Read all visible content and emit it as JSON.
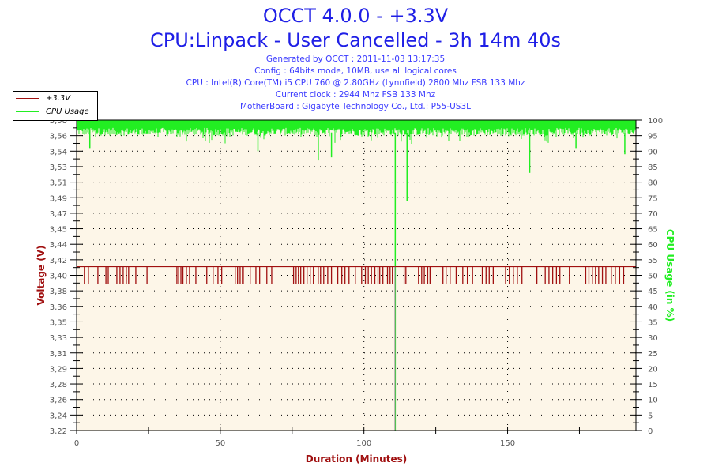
{
  "header": {
    "title": "OCCT 4.0.0 - +3.3V",
    "subtitle": "CPU:Linpack - User Cancelled - 3h 14m 40s",
    "info": [
      "Generated by OCCT : 2011-11-03 13:17:35",
      "Config : 64bits mode, 10MB, use all logical cores",
      "CPU : Intel(R) Core(TM) i5 CPU 760 @ 2.80GHz (Lynnfield) 2800 Mhz FSB 133 Mhz",
      "Current clock : 2944 Mhz FSB 133 Mhz",
      "MotherBoard : Gigabyte Technology Co., Ltd.: P55-US3L"
    ]
  },
  "colors": {
    "voltage": "#a01010",
    "cpu": "#22ee22",
    "plot_bg": "#fdf6e8",
    "title": "#1f1fe6"
  },
  "chart_data": {
    "type": "line",
    "xlabel": "Duration (Minutes)",
    "ylabel": "Voltage (V)",
    "y2label": "CPU Usage (in %)",
    "xlim": [
      0,
      194.67
    ],
    "x_ticks": [
      "0",
      "50",
      "100",
      "150"
    ],
    "x_tick_values": [
      0,
      50,
      100,
      150
    ],
    "ylim": [
      3.22,
      3.58
    ],
    "y_ticks": [
      "3,22",
      "3,24",
      "3,26",
      "3,28",
      "3,29",
      "3,31",
      "3,33",
      "3,35",
      "3,36",
      "3,38",
      "3,40",
      "3,42",
      "3,44",
      "3,45",
      "3,47",
      "3,49",
      "3,51",
      "3,53",
      "3,54",
      "3,56",
      "3,58"
    ],
    "y2lim": [
      0,
      100
    ],
    "y2_ticks": [
      "0",
      "5",
      "10",
      "15",
      "20",
      "25",
      "30",
      "35",
      "40",
      "45",
      "50",
      "55",
      "60",
      "65",
      "70",
      "75",
      "80",
      "85",
      "90",
      "95",
      "100"
    ],
    "grid": true,
    "legend": {
      "placement": "top-left",
      "entries": [
        "+3.3V",
        "CPU Usage"
      ]
    },
    "series": [
      {
        "name": "+3.3V",
        "axis": "left",
        "baseline": 3.41,
        "dip_value": 3.39,
        "dip_times": [
          2.7,
          4.1,
          7.4,
          10.2,
          11.0,
          14.0,
          15.1,
          16.2,
          17.3,
          18.1,
          20.6,
          24.5,
          34.9,
          35.5,
          36.3,
          37.0,
          38.2,
          39.3,
          41.5,
          45.3,
          47.5,
          49.2,
          50.5,
          55.2,
          56.0,
          56.9,
          57.7,
          58.0,
          60.4,
          62.4,
          63.7,
          66.2,
          67.9,
          75.5,
          76.4,
          77.2,
          78.0,
          79.1,
          80.2,
          81.3,
          82.4,
          84.1,
          84.9,
          86.0,
          87.4,
          88.7,
          90.9,
          92.3,
          93.4,
          94.8,
          97.0,
          99.2,
          100.5,
          101.5,
          102.6,
          103.8,
          104.9,
          105.5,
          106.6,
          108.2,
          109.1,
          109.9,
          114.0,
          114.6,
          119.0,
          120.1,
          121.0,
          122.2,
          123.0,
          127.5,
          128.6,
          130.0,
          132.1,
          134.4,
          136.0,
          137.8,
          141.2,
          142.5,
          143.6,
          145.0,
          149.3,
          150.6,
          152.0,
          153.4,
          155.0,
          160.2,
          163.1,
          164.4,
          165.7,
          167.0,
          168.2,
          171.5,
          177.2,
          178.3,
          179.5,
          180.6,
          181.7,
          183.0,
          184.2,
          186.1,
          187.5,
          189.0,
          190.4
        ],
        "spikes": [
          [
            110.8,
            3.22
          ]
        ]
      },
      {
        "name": "CPU Usage",
        "axis": "right",
        "typical_range": [
          95,
          100
        ],
        "dips": [
          [
            4.6,
            91
          ],
          [
            63.1,
            90
          ],
          [
            84.1,
            87
          ],
          [
            88.7,
            88
          ],
          [
            110.9,
            0
          ],
          [
            115.0,
            74
          ],
          [
            157.7,
            83
          ],
          [
            173.8,
            91
          ],
          [
            190.8,
            89
          ]
        ]
      }
    ]
  }
}
